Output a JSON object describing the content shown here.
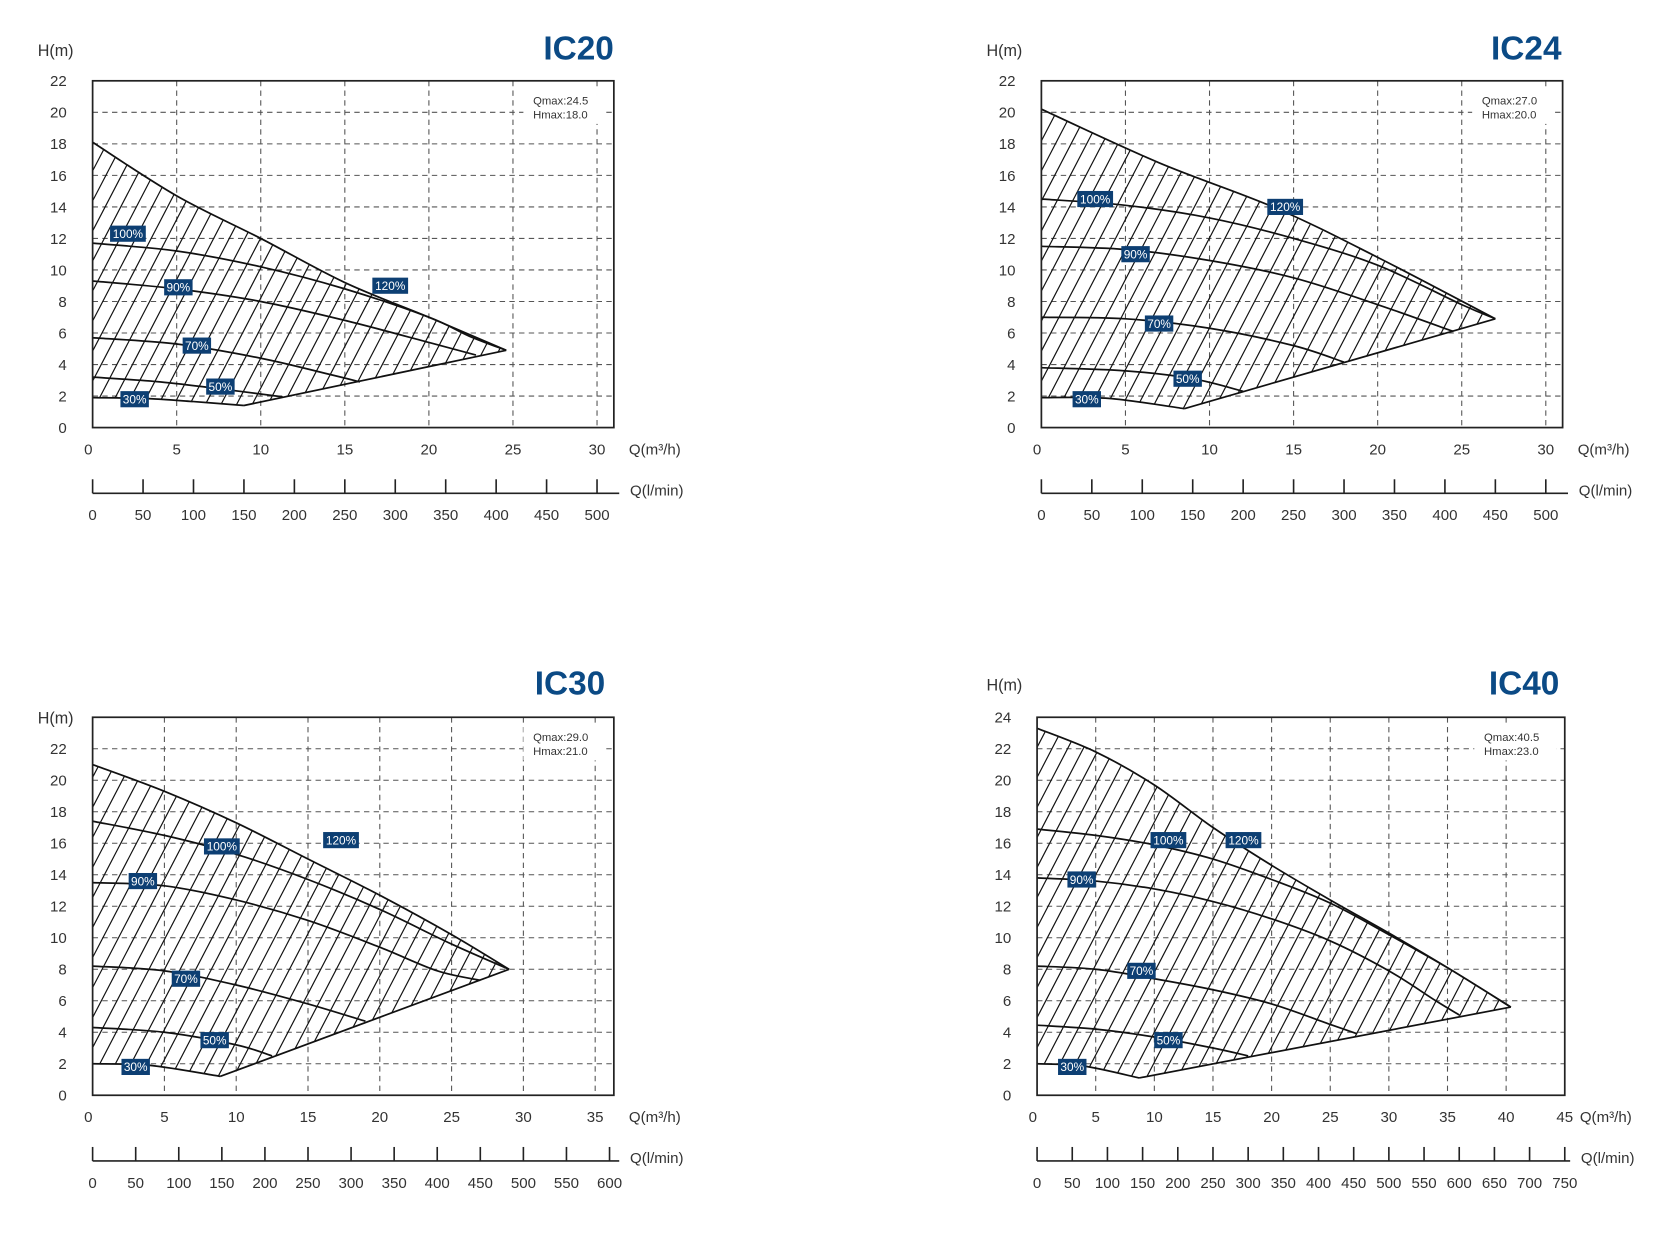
{
  "chart_data": [
    {
      "type": "line",
      "title": "IC20",
      "info": [
        "Qmax:24.5",
        "Hmax:18.0"
      ],
      "ylabel": "H(m)",
      "xlabel": "Q(m³/h)",
      "x2label": "Q(l/min)",
      "xlim": [
        0,
        31
      ],
      "ylim": [
        0,
        22
      ],
      "x_ticks": [
        0,
        5,
        10,
        15,
        20,
        25,
        30
      ],
      "y_ticks": [
        0,
        2,
        4,
        6,
        8,
        10,
        12,
        14,
        16,
        18,
        20,
        22
      ],
      "x2_ticks": [
        0,
        50,
        100,
        150,
        200,
        250,
        300,
        350,
        400,
        450,
        500
      ],
      "grid": true,
      "envelope_upper": [
        [
          0,
          18.1
        ],
        [
          5,
          14.7
        ],
        [
          10,
          12.0
        ],
        [
          15,
          9.2
        ],
        [
          20,
          7.0
        ],
        [
          24.6,
          4.9
        ]
      ],
      "envelope_lower": [
        [
          9,
          1.4
        ],
        [
          24.6,
          4.9
        ]
      ],
      "series": [
        {
          "name": "120%",
          "label_at": [
            17.7,
            9.0
          ],
          "points": [
            [
              0,
              18.1
            ],
            [
              5,
              14.7
            ],
            [
              10,
              12.0
            ],
            [
              15,
              9.2
            ],
            [
              20,
              7.0
            ],
            [
              24.6,
              4.9
            ]
          ]
        },
        {
          "name": "100%",
          "label_at": [
            2.1,
            12.3
          ],
          "points": [
            [
              0,
              11.7
            ],
            [
              5,
              11.2
            ],
            [
              10,
              10.2
            ],
            [
              15,
              8.8
            ],
            [
              20,
              7.0
            ],
            [
              22.4,
              5.8
            ],
            [
              24.6,
              4.9
            ]
          ]
        },
        {
          "name": "90%",
          "label_at": [
            5.1,
            8.9
          ],
          "points": [
            [
              0,
              9.3
            ],
            [
              5,
              8.8
            ],
            [
              10,
              8.0
            ],
            [
              15,
              6.8
            ],
            [
              20,
              5.4
            ],
            [
              22.8,
              4.6
            ]
          ]
        },
        {
          "name": "70%",
          "label_at": [
            6.2,
            5.2
          ],
          "points": [
            [
              0,
              5.7
            ],
            [
              5,
              5.3
            ],
            [
              10,
              4.4
            ],
            [
              14,
              3.4
            ],
            [
              15.9,
              2.9
            ]
          ]
        },
        {
          "name": "50%",
          "label_at": [
            7.6,
            2.6
          ],
          "points": [
            [
              0,
              3.2
            ],
            [
              4,
              2.9
            ],
            [
              8,
              2.4
            ],
            [
              11.3,
              1.95
            ]
          ]
        },
        {
          "name": "30%",
          "label_at": [
            2.5,
            1.8
          ],
          "points": [
            [
              0,
              1.9
            ],
            [
              3,
              1.85
            ],
            [
              6,
              1.65
            ],
            [
              9,
              1.4
            ]
          ]
        }
      ]
    },
    {
      "type": "line",
      "title": "IC24",
      "info": [
        "Qmax:27.0",
        "Hmax:20.0"
      ],
      "ylabel": "H(m)",
      "xlabel": "Q(m³/h)",
      "x2label": "Q(l/min)",
      "xlim": [
        0,
        31
      ],
      "ylim": [
        0,
        22
      ],
      "x_ticks": [
        0,
        5,
        10,
        15,
        20,
        25,
        30
      ],
      "y_ticks": [
        0,
        2,
        4,
        6,
        8,
        10,
        12,
        14,
        16,
        18,
        20,
        22
      ],
      "x2_ticks": [
        0,
        50,
        100,
        150,
        200,
        250,
        300,
        350,
        400,
        450,
        500
      ],
      "grid": true,
      "envelope_upper": [
        [
          0,
          20.2
        ],
        [
          7,
          16.8
        ],
        [
          14,
          13.9
        ],
        [
          20,
          10.8
        ],
        [
          27,
          6.9
        ]
      ],
      "envelope_lower": [
        [
          8.5,
          1.2
        ],
        [
          27,
          6.9
        ]
      ],
      "series": [
        {
          "name": "120%",
          "label_at": [
            14.5,
            14.0
          ],
          "points": [
            [
              0,
              20.2
            ],
            [
              7,
              16.8
            ],
            [
              14,
              13.9
            ],
            [
              20,
              10.8
            ],
            [
              27,
              6.9
            ]
          ]
        },
        {
          "name": "100%",
          "label_at": [
            3.2,
            14.5
          ],
          "points": [
            [
              0,
              14.5
            ],
            [
              5,
              14.1
            ],
            [
              10,
              13.3
            ],
            [
              15,
              12.0
            ],
            [
              20,
              10.3
            ],
            [
              25,
              7.8
            ],
            [
              27,
              6.9
            ]
          ]
        },
        {
          "name": "90%",
          "label_at": [
            5.6,
            11.0
          ],
          "points": [
            [
              0,
              11.5
            ],
            [
              5,
              11.3
            ],
            [
              10,
              10.6
            ],
            [
              15,
              9.5
            ],
            [
              20,
              7.8
            ],
            [
              24.5,
              6.1
            ]
          ]
        },
        {
          "name": "70%",
          "label_at": [
            7.0,
            6.6
          ],
          "points": [
            [
              0,
              7.0
            ],
            [
              5,
              6.9
            ],
            [
              10,
              6.3
            ],
            [
              15,
              5.2
            ],
            [
              18,
              4.15
            ]
          ]
        },
        {
          "name": "50%",
          "label_at": [
            8.7,
            3.1
          ],
          "points": [
            [
              0,
              3.8
            ],
            [
              5,
              3.6
            ],
            [
              9,
              3.1
            ],
            [
              12,
              2.3
            ]
          ]
        },
        {
          "name": "30%",
          "label_at": [
            2.7,
            1.8
          ],
          "points": [
            [
              0,
              1.9
            ],
            [
              4,
              1.85
            ],
            [
              8.5,
              1.2
            ]
          ]
        }
      ]
    },
    {
      "type": "line",
      "title": "IC30",
      "info": [
        "Qmax:29.0",
        "Hmax:21.0"
      ],
      "ylabel": "H(m)",
      "xlabel": "Q(m³/h)",
      "x2label": "Q(l/min)",
      "xlim": [
        0,
        36.3
      ],
      "ylim": [
        0,
        24
      ],
      "x_ticks": [
        0,
        5,
        10,
        15,
        20,
        25,
        30,
        35
      ],
      "y_ticks": [
        0,
        2,
        4,
        6,
        8,
        10,
        12,
        14,
        16,
        18,
        20,
        22
      ],
      "x2_ticks": [
        0,
        50,
        100,
        150,
        200,
        250,
        300,
        350,
        400,
        450,
        500,
        550,
        600
      ],
      "grid": true,
      "envelope_upper": [
        [
          0,
          21.0
        ],
        [
          5,
          19.3
        ],
        [
          10,
          17.3
        ],
        [
          15,
          15.0
        ],
        [
          20,
          12.7
        ],
        [
          25,
          10.2
        ],
        [
          29,
          8.0
        ]
      ],
      "envelope_lower": [
        [
          8.9,
          1.2
        ],
        [
          29,
          8.0
        ]
      ],
      "series": [
        {
          "name": "120%",
          "label_at": [
            17.3,
            16.2
          ],
          "points": [
            [
              0,
              21.0
            ],
            [
              5,
              19.3
            ],
            [
              10,
              17.3
            ],
            [
              15,
              15.0
            ],
            [
              20,
              12.7
            ],
            [
              25,
              10.2
            ],
            [
              29,
              8.0
            ]
          ]
        },
        {
          "name": "100%",
          "label_at": [
            9.0,
            15.8
          ],
          "points": [
            [
              0,
              17.4
            ],
            [
              5,
              16.5
            ],
            [
              10,
              15.3
            ],
            [
              15,
              13.7
            ],
            [
              20,
              11.8
            ],
            [
              25,
              9.6
            ],
            [
              29,
              8.0
            ]
          ]
        },
        {
          "name": "90%",
          "label_at": [
            3.5,
            13.6
          ],
          "points": [
            [
              0,
              13.5
            ],
            [
              5,
              13.3
            ],
            [
              10,
              12.4
            ],
            [
              15,
              11.1
            ],
            [
              20,
              9.4
            ],
            [
              24,
              7.9
            ],
            [
              27,
              7.3
            ]
          ]
        },
        {
          "name": "70%",
          "label_at": [
            6.5,
            7.4
          ],
          "points": [
            [
              0,
              8.2
            ],
            [
              5,
              7.9
            ],
            [
              10,
              7.0
            ],
            [
              15,
              5.8
            ],
            [
              19,
              4.7
            ]
          ]
        },
        {
          "name": "50%",
          "label_at": [
            8.5,
            3.5
          ],
          "points": [
            [
              0,
              4.3
            ],
            [
              5,
              4.0
            ],
            [
              10,
              3.2
            ],
            [
              12.5,
              2.5
            ]
          ]
        },
        {
          "name": "30%",
          "label_at": [
            3.0,
            1.8
          ],
          "points": [
            [
              0,
              2.0
            ],
            [
              4,
              1.9
            ],
            [
              8.9,
              1.2
            ]
          ]
        }
      ]
    },
    {
      "type": "line",
      "title": "IC40",
      "info": [
        "Qmax:40.5",
        "Hmax:23.0"
      ],
      "ylabel": "H(m)",
      "xlabel": "Q(m³/h)",
      "x2label": "Q(l/min)",
      "xlim": [
        0,
        45
      ],
      "ylim": [
        0,
        24
      ],
      "x_ticks": [
        0,
        5,
        10,
        15,
        20,
        25,
        30,
        35,
        40,
        45
      ],
      "y_ticks": [
        0,
        2,
        4,
        6,
        8,
        10,
        12,
        14,
        16,
        18,
        20,
        22,
        24
      ],
      "x2_ticks": [
        0,
        50,
        100,
        150,
        200,
        250,
        300,
        350,
        400,
        450,
        500,
        550,
        600,
        650,
        700,
        750
      ],
      "grid": true,
      "envelope_upper": [
        [
          0,
          23.3
        ],
        [
          5,
          21.8
        ],
        [
          10,
          19.7
        ],
        [
          15,
          17.0
        ],
        [
          20,
          14.6
        ],
        [
          25,
          12.4
        ],
        [
          30,
          10.3
        ],
        [
          35,
          8.1
        ],
        [
          40.4,
          5.6
        ]
      ],
      "envelope_lower": [
        [
          8.7,
          1.1
        ],
        [
          40.4,
          5.6
        ]
      ],
      "series": [
        {
          "name": "120%",
          "label_at": [
            17.6,
            16.2
          ],
          "points": [
            [
              0,
              23.3
            ],
            [
              5,
              21.8
            ],
            [
              10,
              19.7
            ],
            [
              15,
              17.0
            ],
            [
              20,
              14.6
            ],
            [
              25,
              12.4
            ],
            [
              30,
              10.3
            ],
            [
              35,
              8.1
            ],
            [
              40.4,
              5.6
            ]
          ]
        },
        {
          "name": "100%",
          "label_at": [
            11.2,
            16.2
          ],
          "points": [
            [
              0,
              16.9
            ],
            [
              5,
              16.5
            ],
            [
              10,
              15.9
            ],
            [
              15,
              15.0
            ],
            [
              20,
              13.7
            ],
            [
              25,
              12.2
            ],
            [
              30,
              10.2
            ],
            [
              35,
              8.1
            ],
            [
              40.4,
              5.6
            ]
          ]
        },
        {
          "name": "90%",
          "label_at": [
            3.8,
            13.7
          ],
          "points": [
            [
              0,
              13.8
            ],
            [
              5,
              13.6
            ],
            [
              10,
              13.1
            ],
            [
              15,
              12.3
            ],
            [
              20,
              11.2
            ],
            [
              25,
              9.8
            ],
            [
              30,
              7.9
            ],
            [
              34,
              6.0
            ],
            [
              36,
              5.1
            ]
          ]
        },
        {
          "name": "70%",
          "label_at": [
            8.9,
            7.9
          ],
          "points": [
            [
              0,
              8.2
            ],
            [
              5,
              8.0
            ],
            [
              10,
              7.4
            ],
            [
              15,
              6.7
            ],
            [
              20,
              5.8
            ],
            [
              25,
              4.5
            ],
            [
              27.3,
              3.9
            ]
          ]
        },
        {
          "name": "50%",
          "label_at": [
            11.2,
            3.5
          ],
          "points": [
            [
              0,
              4.45
            ],
            [
              5,
              4.2
            ],
            [
              10,
              3.7
            ],
            [
              15,
              3.0
            ],
            [
              18,
              2.5
            ]
          ]
        },
        {
          "name": "30%",
          "label_at": [
            3.0,
            1.8
          ],
          "points": [
            [
              0,
              2.0
            ],
            [
              4,
              1.85
            ],
            [
              8.7,
              1.1
            ]
          ]
        }
      ]
    }
  ]
}
